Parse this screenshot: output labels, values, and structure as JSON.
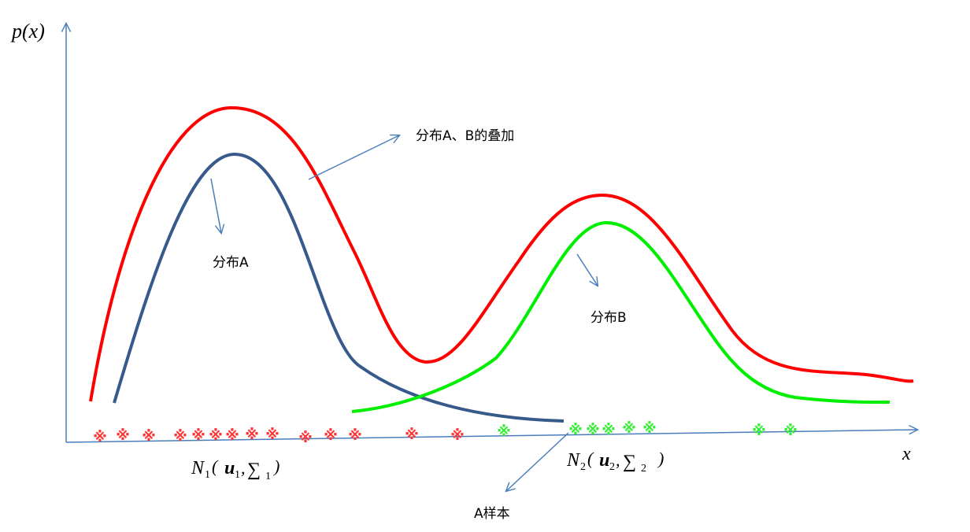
{
  "axes": {
    "y_label": "p(x)",
    "x_label": "x",
    "color": "#4a7ebb"
  },
  "curves": {
    "sum": {
      "name": "分布A、B的叠加",
      "color": "#ff0000"
    },
    "a": {
      "name": "分布A",
      "color": "#375a8c"
    },
    "b": {
      "name": "分布B",
      "color": "#00ee00"
    }
  },
  "labels": {
    "sum_label": "分布A、B的叠加",
    "a_label": "分布A",
    "b_label": "分布B",
    "sample_label": "A样本"
  },
  "formulas": {
    "n1": {
      "symbol": "N",
      "index": "1",
      "mean": "u",
      "mean_index": "1",
      "cov": "∑",
      "cov_index": "1",
      "open": "(",
      "comma": ",",
      "close": ")"
    },
    "n2": {
      "symbol": "N",
      "index": "2",
      "mean": "u",
      "mean_index": "2",
      "cov": "∑",
      "cov_index": "2",
      "open": "(",
      "comma": ",",
      "close": ")"
    }
  },
  "samples": {
    "glyph": "※",
    "a_color": "#ff3333",
    "b_color": "#33ee33",
    "a_count": 14,
    "b_count": 8
  }
}
